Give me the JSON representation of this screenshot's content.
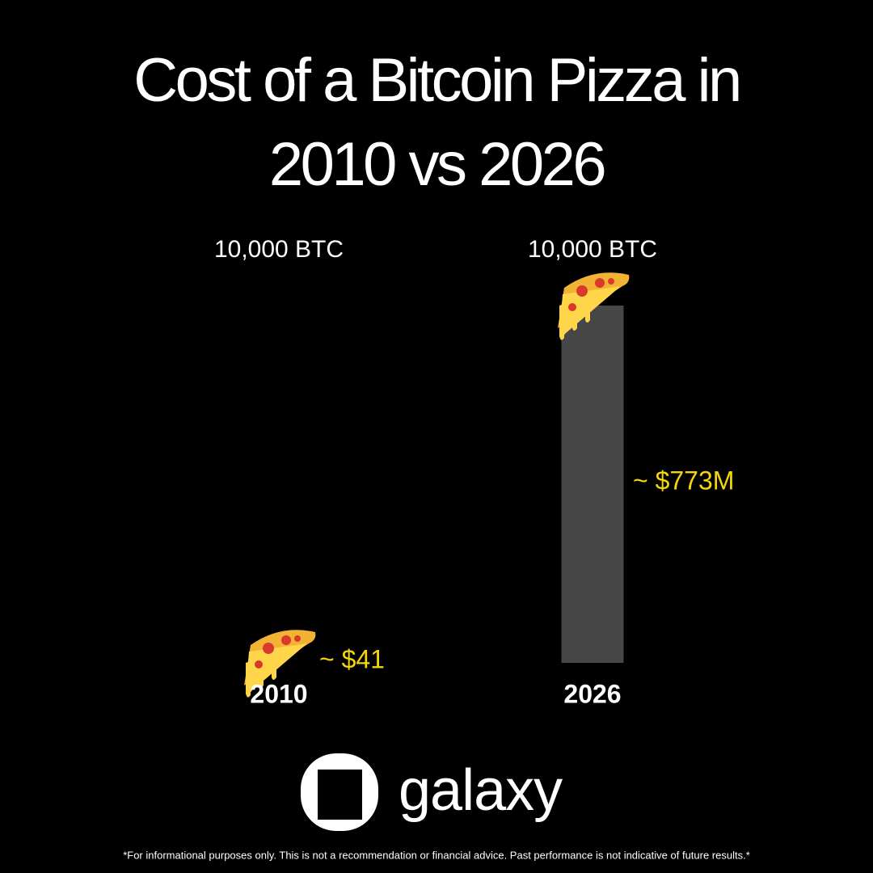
{
  "chart_data": {
    "type": "bar",
    "title": "Cost of a Bitcoin Pizza in 2010 vs 2026",
    "categories": [
      "2010",
      "2026"
    ],
    "top_labels": [
      "10,000 BTC",
      "10,000 BTC"
    ],
    "values": [
      41,
      773000000
    ],
    "value_labels": [
      "~ $41",
      "~ $773M"
    ],
    "color": "#474747",
    "label_color": "#f5d60a"
  },
  "brand": "galaxy",
  "disclaimer": "*For informational purposes only. This is not a recommendation or financial advice. Past performance is not indicative of future results.*"
}
